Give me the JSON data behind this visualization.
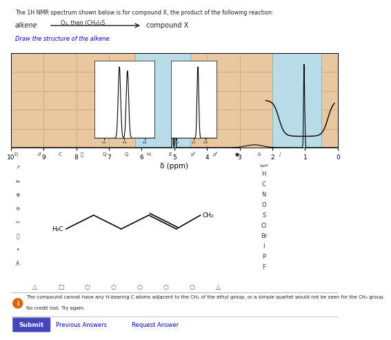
{
  "title_text": "The 1H NMR spectrum shown below is for compound X, the product of the following reaction:",
  "reagents": "O₂, then (CH₃)₂S",
  "question": "Draw the structure of the alkene.",
  "xlabel": "δ (ppm)",
  "grid_color": "#c8a878",
  "bg_color": "#e8c8a0",
  "spectrum_bg": "#b8dce8",
  "submit_btn_color": "#4444bb",
  "feedback_text": "The compound cannot have any H-bearing C atoms adjacent to the CH₂ of the ethyl group, or a simple quartet would not be seen for the CH₂ group.\nNo credit lost. Try again.",
  "element_labels": [
    "H",
    "C",
    "N",
    "O",
    "S",
    "Cl",
    "Br",
    "I",
    "P",
    "F"
  ],
  "white": "#ffffff",
  "light_gray": "#f0f0f0",
  "border_gray": "#aaaaaa",
  "text_black": "#222222",
  "link_blue": "#0000cc",
  "orange_circle": "#dd6600"
}
